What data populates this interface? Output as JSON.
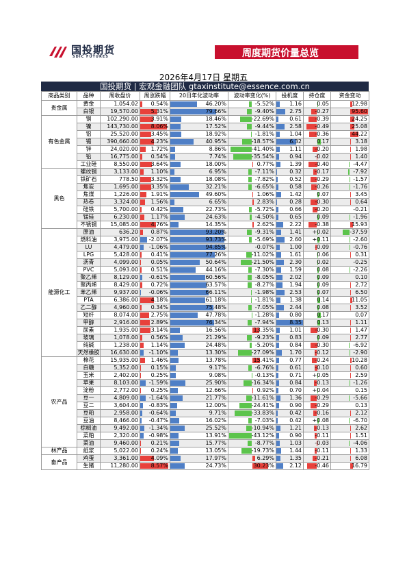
{
  "header": {
    "logo_text": "国投期货",
    "logo_sub": "SDIC FUTURES",
    "banner_title": "周度期货价量总览",
    "date_line": "2026年4月17日 星期五",
    "headline": "国投期货 | 宏观金融团队  gtaxinstitute@essence.com.cn"
  },
  "colors": {
    "brand_red": "#c8102e",
    "brand_navy": "#1f2a44",
    "up": "#e8413c",
    "down": "#4f7fc6",
    "green": "#5cc44c"
  },
  "columns": [
    "商品类别",
    "品种",
    "周收盘价",
    "周涨跌幅",
    "20日年化波动率",
    "波动率变化(%)",
    "投机度",
    "持仓度",
    "资金变动"
  ],
  "groups": [
    {
      "category": "贵金属",
      "rows": [
        [
          "黄金",
          "1,054.02",
          "0.54%",
          "46.20%",
          "-5.52%",
          "1.16",
          "0.05",
          "12.98"
        ],
        [
          "白银",
          "19,570.00",
          "5.31%",
          "79.66%",
          "-9.40%",
          "2.75",
          "-0.27",
          "95.60"
        ]
      ]
    },
    {
      "category": "有色金属",
      "rows": [
        [
          "铜",
          "102,290.00",
          "3.91%",
          "18.46%",
          "-22.69%",
          "0.61",
          "-0.39",
          "24.25"
        ],
        [
          "镍",
          "143,730.00",
          "8.06%",
          "17.52%",
          "-9.44%",
          "2.58",
          "-0.49",
          "25.08"
        ],
        [
          "铝",
          "25,520.00",
          "3.45%",
          "18.92%",
          "-1.81%",
          "1.04",
          "-0.36",
          "44.22"
        ],
        [
          "锡",
          "390,660.00",
          "4.23%",
          "40.95%",
          "-18.57%",
          "6.32",
          "0.17",
          "3.18"
        ],
        [
          "锌",
          "24,020.00",
          "1.72%",
          "8.86%",
          "-41.40%",
          "1.11",
          "-0.20",
          "1.98"
        ],
        [
          "铅",
          "16,775.00",
          "0.54%",
          "7.74%",
          "-35.54%",
          "0.94",
          "-0.02",
          "1.40"
        ],
        [
          "工业硅",
          "8,550.00",
          "3.64%",
          "18.00%",
          "0.77%",
          "1.39",
          "-0.40",
          "-4.47"
        ]
      ]
    },
    {
      "category": "黑色",
      "rows": [
        [
          "螺纹钢",
          "3,133.00",
          "1.10%",
          "6.95%",
          "-7.11%",
          "0.32",
          "-0.17",
          "-7.92"
        ],
        [
          "铁矿石",
          "778.50",
          "3.32%",
          "18.08%",
          "-7.82%",
          "0.52",
          "-0.29",
          "-1.57"
        ],
        [
          "焦炭",
          "1,695.00",
          "3.35%",
          "32.21%",
          "-6.65%",
          "0.58",
          "-0.26",
          "-1.76"
        ],
        [
          "焦煤",
          "1,226.00",
          "1.91%",
          "49.60%",
          "1.06%",
          "1.42",
          "0.07",
          "3.45"
        ],
        [
          "热卷",
          "3,324.00",
          "1.56%",
          "6.65%",
          "2.83%",
          "0.28",
          "-0.30",
          "0.64"
        ],
        [
          "硅铁",
          "5,700.00",
          "0.42%",
          "22.73%",
          "-5.72%",
          "0.66",
          "-0.20",
          "-0.21"
        ],
        [
          "锰硅",
          "6,230.00",
          "1.17%",
          "24.63%",
          "-4.50%",
          "0.65",
          "0.09",
          "-1.96"
        ],
        [
          "不锈钢",
          "15,085.00",
          "4.76%",
          "14.35%",
          "2.62%",
          "2.22",
          "-0.38",
          "15.93"
        ]
      ]
    },
    {
      "category": "能源化工",
      "rows": [
        [
          "原油",
          "636.20",
          "0.87%",
          "93.20%",
          "-9.31%",
          "1.41",
          "+0.02",
          "-37.59"
        ],
        [
          "燃料油",
          "3,975.00",
          "-2.07%",
          "93.73%",
          "-5.69%",
          "2.60",
          "+0.11",
          "-2.60"
        ],
        [
          "LU",
          "4,479.00",
          "-1.06%",
          "94.85%",
          "-0.07%",
          "1.00",
          "-0.09",
          "-0.76"
        ],
        [
          "LPG",
          "5,428.00",
          "0.41%",
          "77.26%",
          "-11.02%",
          "1.61",
          "0.06",
          "0.31"
        ],
        [
          "沥青",
          "4,099.00",
          "0.05%",
          "50.64%",
          "-21.50%",
          "2.30",
          "0.02",
          "-0.25"
        ],
        [
          "PVC",
          "5,093.00",
          "0.51%",
          "44.16%",
          "-7.30%",
          "1.59",
          "0.08",
          "-2.26"
        ],
        [
          "聚乙烯",
          "8,129.00",
          "-0.61%",
          "60.56%",
          "-8.05%",
          "2.02",
          "0.09",
          "0.10"
        ],
        [
          "聚丙烯",
          "8,429.00",
          "0.72%",
          "63.57%",
          "-8.27%",
          "1.94",
          "0.09",
          "2.72"
        ],
        [
          "苯乙烯",
          "9,937.00",
          "-0.06%",
          "66.11%",
          "-1.98%",
          "2.53",
          "0.07",
          "6.50"
        ],
        [
          "PTA",
          "6,386.00",
          "4.18%",
          "61.18%",
          "-1.81%",
          "1.38",
          "0.14",
          "11.05"
        ],
        [
          "乙二醇",
          "4,960.00",
          "0.34%",
          "75.48%",
          "-7.05%",
          "2.44",
          "0.08",
          "3.52"
        ],
        [
          "短纤",
          "8,074.00",
          "2.75%",
          "47.78%",
          "-1.28%",
          "0.80",
          "0.17",
          "0.07"
        ],
        [
          "甲醇",
          "2,916.00",
          "2.89%",
          "76.34%",
          "-7.94%",
          "8.35",
          "0.13",
          "1.11"
        ],
        [
          "尿素",
          "1,935.00",
          "3.14%",
          "16.56%",
          "13.35%",
          "1.01",
          "-0.30",
          "1.47"
        ],
        [
          "玻璃",
          "1,078.00",
          "0.56%",
          "21.29%",
          "-9.23%",
          "0.83",
          "0.09",
          "2.77"
        ],
        [
          "纯碱",
          "1,238.00",
          "1.14%",
          "24.48%",
          "-5.20%",
          "0.84",
          "-0.30",
          "-6.92"
        ],
        [
          "天然橡胶",
          "16,630.00",
          "-1.10%",
          "13.30%",
          "-27.09%",
          "1.70",
          "-0.12",
          "-2.90"
        ]
      ]
    },
    {
      "category": "农产品",
      "rows": [
        [
          "棉花",
          "15,935.00",
          "1.46%",
          "13.78%",
          "15.41%",
          "0.77",
          "-0.24",
          "10.28"
        ],
        [
          "白糖",
          "5,352.00",
          "0.15%",
          "9.17%",
          "-6.76%",
          "0.61",
          "-0.10",
          "0.60"
        ],
        [
          "玉米",
          "2,402.00",
          "0.25%",
          "9.08%",
          "-0.13%",
          "0.71",
          "+0.05",
          "2.59"
        ],
        [
          "苹果",
          "8,103.00",
          "-1.59%",
          "25.90%",
          "-16.34%",
          "0.84",
          "-0.13",
          "-1.26"
        ],
        [
          "淀粉",
          "2,772.00",
          "0.25%",
          "12.66%",
          "0.92%",
          "0.70",
          "+0.04",
          "0.15"
        ],
        [
          "豆一",
          "4,809.00",
          "-1.64%",
          "21.77%",
          "-11.61%",
          "1.36",
          "-0.29",
          "-5.66"
        ],
        [
          "豆二",
          "3,604.00",
          "-0.83%",
          "12.00%",
          "-24.41%",
          "0.90",
          "-0.29",
          "0.13"
        ],
        [
          "豆粕",
          "2,958.00",
          "-0.64%",
          "9.71%",
          "-33.83%",
          "0.42",
          "-0.16",
          "2.12"
        ],
        [
          "豆油",
          "8,466.00",
          "-0.47%",
          "16.02%",
          "-7.03%",
          "0.42",
          "+0.08",
          "-6.70"
        ],
        [
          "棕榈油",
          "9,492.00",
          "-1.34%",
          "25.52%",
          "-10.94%",
          "1.21",
          "-0.13",
          "2.62"
        ],
        [
          "菜粕",
          "2,320.00",
          "-0.98%",
          "13.91%",
          "-43.12%",
          "0.90",
          "-0.11",
          "1.51"
        ],
        [
          "菜油",
          "9,460.00",
          "0.21%",
          "15.77%",
          "-8.77%",
          "1.03",
          "-0.03",
          "-4.06"
        ]
      ]
    },
    {
      "category": "林产品",
      "rows": [
        [
          "纸浆",
          "5,022.00",
          "0.24%",
          "13.05%",
          "-19.73%",
          "1.44",
          "-0.11",
          "1.33"
        ]
      ]
    },
    {
      "category": "畜产品",
      "rows": [
        [
          "鸡蛋",
          "3,361.00",
          "4.09%",
          "17.97%",
          "6.29%",
          "1.35",
          "-0.21",
          "6.08"
        ],
        [
          "生猪",
          "11,280.00",
          "8.57%",
          "24.73%",
          "30.23%",
          "2.12",
          "-0.46",
          "16.79"
        ]
      ]
    }
  ]
}
